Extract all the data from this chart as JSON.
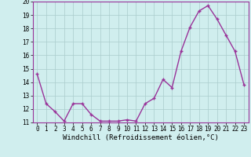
{
  "x": [
    0,
    1,
    2,
    3,
    4,
    5,
    6,
    7,
    8,
    9,
    10,
    11,
    12,
    13,
    14,
    15,
    16,
    17,
    18,
    19,
    20,
    21,
    22,
    23
  ],
  "y": [
    14.6,
    12.4,
    11.8,
    11.1,
    12.4,
    12.4,
    11.6,
    11.1,
    11.1,
    11.1,
    11.2,
    11.1,
    12.4,
    12.8,
    14.2,
    13.6,
    16.3,
    18.1,
    19.3,
    19.7,
    18.7,
    17.5,
    16.3,
    13.8
  ],
  "line_color": "#993399",
  "marker": "+",
  "marker_size": 3,
  "marker_lw": 1.0,
  "bg_color": "#d0eeee",
  "grid_color": "#aacccc",
  "xlabel": "Windchill (Refroidissement éolien,°C)",
  "ylim": [
    11,
    20
  ],
  "xlim": [
    -0.5,
    23.5
  ],
  "yticks": [
    11,
    12,
    13,
    14,
    15,
    16,
    17,
    18,
    19,
    20
  ],
  "xticks": [
    0,
    1,
    2,
    3,
    4,
    5,
    6,
    7,
    8,
    9,
    10,
    11,
    12,
    13,
    14,
    15,
    16,
    17,
    18,
    19,
    20,
    21,
    22,
    23
  ],
  "tick_fontsize": 5.5,
  "xlabel_fontsize": 6.5,
  "line_width": 1.0
}
